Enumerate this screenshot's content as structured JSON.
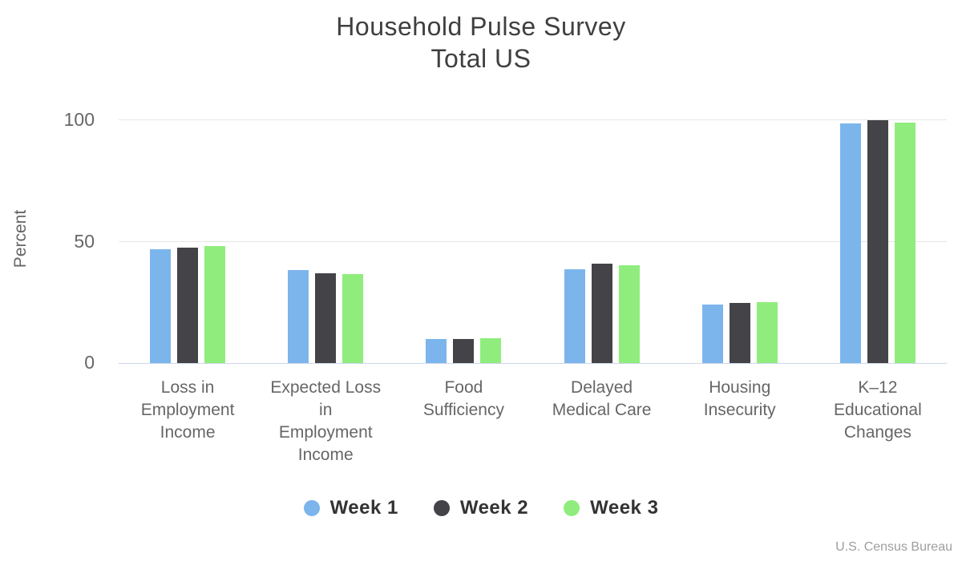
{
  "chart_data": {
    "type": "bar",
    "title_lines": [
      "Household Pulse Survey",
      "Total US"
    ],
    "ylabel": "Percent",
    "xlabel": "",
    "ylim": [
      0,
      100
    ],
    "yticks": [
      0,
      50,
      100
    ],
    "grid": true,
    "legend_position": "bottom",
    "credit": "U.S. Census Bureau",
    "categories": [
      {
        "label": "Loss in Employment Income",
        "lines": [
          "Loss in",
          "Employment",
          "Income"
        ]
      },
      {
        "label": "Expected Loss in Employment Income",
        "lines": [
          "Expected Loss",
          "in",
          "Employment",
          "Income"
        ]
      },
      {
        "label": "Food Sufficiency",
        "lines": [
          "Food",
          "Sufficiency"
        ]
      },
      {
        "label": "Delayed Medical Care",
        "lines": [
          "Delayed",
          "Medical Care"
        ]
      },
      {
        "label": "Housing Insecurity",
        "lines": [
          "Housing",
          "Insecurity"
        ]
      },
      {
        "label": "K–12 Educational Changes",
        "lines": [
          "K–12",
          "Educational",
          "Changes"
        ]
      }
    ],
    "series": [
      {
        "name": "Week 1",
        "color": "#7cb5ec",
        "values": [
          47.0,
          38.3,
          9.8,
          38.5,
          24.1,
          98.8
        ]
      },
      {
        "name": "Week 2",
        "color": "#434348",
        "values": [
          47.5,
          37.0,
          10.0,
          41.0,
          24.6,
          100.0
        ]
      },
      {
        "name": "Week 3",
        "color": "#90ed7d",
        "values": [
          48.1,
          36.5,
          10.2,
          40.4,
          25.1,
          98.9
        ]
      }
    ],
    "colors": {
      "title_text": "#3f3f3f",
      "axis_label_text": "#666666",
      "gridline": "#e6e6e6",
      "axis_line": "#ccd6eb",
      "credit_text": "#9e9e9e",
      "background": "#ffffff"
    }
  }
}
